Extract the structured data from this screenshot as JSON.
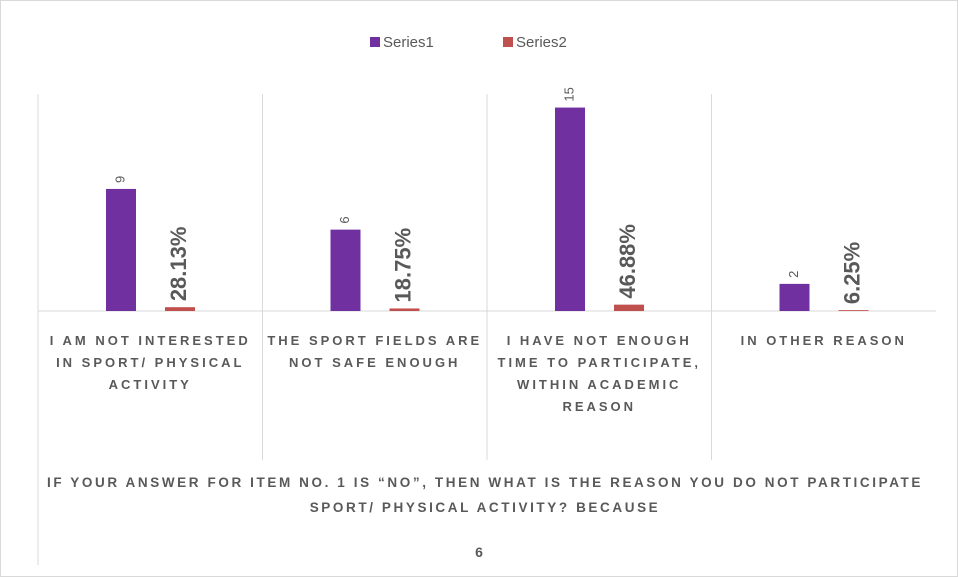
{
  "chart_data": {
    "type": "bar",
    "categories": [
      "I AM NOT INTERESTED IN SPORT/ PHYSICAL ACTIVITY",
      "THE SPORT FIELDS ARE NOT SAFE ENOUGH",
      "I HAVE NOT ENOUGH TIME TO PARTICIPATE, WITHIN ACADEMIC REASON",
      "IN OTHER REASON"
    ],
    "series": [
      {
        "name": "Series1",
        "color": "#7030a0",
        "values": [
          9,
          6,
          15,
          2
        ]
      },
      {
        "name": "Series2",
        "color": "#c0504d",
        "values": [
          0.2813,
          0.1875,
          0.4688,
          0.0625
        ],
        "value_labels": [
          "28.13%",
          "18.75%",
          "46.88%",
          "6.25%"
        ]
      }
    ],
    "x_label": "IF YOUR ANSWER FOR ITEM NO. 1 IS “NO”, THEN WHAT IS THE REASON YOU DO NOT PARTICIPATE SPORT/ PHYSICAL ACTIVITY? BECAUSE",
    "footer": "6",
    "ylim": [
      0,
      16
    ],
    "legend": "top"
  }
}
